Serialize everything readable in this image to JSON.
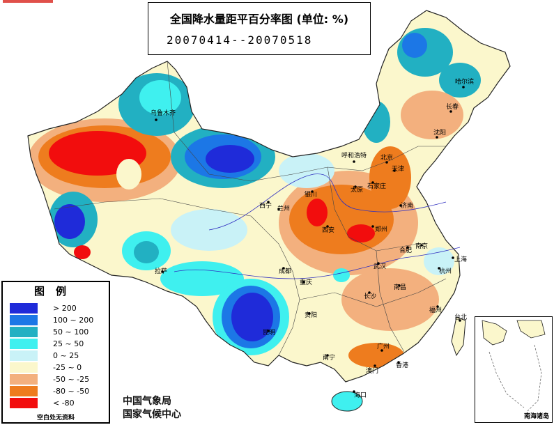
{
  "title": {
    "line1": "全国降水量距平百分率图 (单位: %)",
    "line2": "20070414--20070518"
  },
  "legend": {
    "title": "图例",
    "items": [
      {
        "label": "> 200",
        "color": "#1f2bd9"
      },
      {
        "label": "100 ~ 200",
        "color": "#1c77e6"
      },
      {
        "label": "50 ~ 100",
        "color": "#22b0c2"
      },
      {
        "label": "25 ~ 50",
        "color": "#3ff0ef"
      },
      {
        "label": "0 ~ 25",
        "color": "#c9f2f7"
      },
      {
        "label": "-25 ~ 0",
        "color": "#fbf7cc"
      },
      {
        "label": "-50 ~ -25",
        "color": "#f3b07e"
      },
      {
        "label": "-80 ~ -50",
        "color": "#ee7c1e"
      },
      {
        "label": "< -80",
        "color": "#f20d0d"
      }
    ],
    "note": "空白处无资料"
  },
  "credits": {
    "line1": "中国气象局",
    "line2": "国家气候中心"
  },
  "inset": {
    "label": "南海诸岛"
  },
  "cities": [
    {
      "name": "乌鲁木齐"
    },
    {
      "name": "呼和浩特"
    },
    {
      "name": "哈尔滨"
    },
    {
      "name": "长春"
    },
    {
      "name": "沈阳"
    },
    {
      "name": "北京"
    },
    {
      "name": "天津"
    },
    {
      "name": "银川"
    },
    {
      "name": "太原"
    },
    {
      "name": "石家庄"
    },
    {
      "name": "济南"
    },
    {
      "name": "西宁"
    },
    {
      "name": "兰州"
    },
    {
      "name": "西安"
    },
    {
      "name": "郑州"
    },
    {
      "name": "合肥"
    },
    {
      "name": "南京"
    },
    {
      "name": "上海"
    },
    {
      "name": "拉萨"
    },
    {
      "name": "成都"
    },
    {
      "name": "重庆"
    },
    {
      "name": "武汉"
    },
    {
      "name": "杭州"
    },
    {
      "name": "南昌"
    },
    {
      "name": "长沙"
    },
    {
      "name": "福州"
    },
    {
      "name": "贵阳"
    },
    {
      "name": "昆明"
    },
    {
      "name": "南宁"
    },
    {
      "name": "广州"
    },
    {
      "name": "香港"
    },
    {
      "name": "澳门"
    },
    {
      "name": "台北"
    },
    {
      "name": "海口"
    }
  ]
}
